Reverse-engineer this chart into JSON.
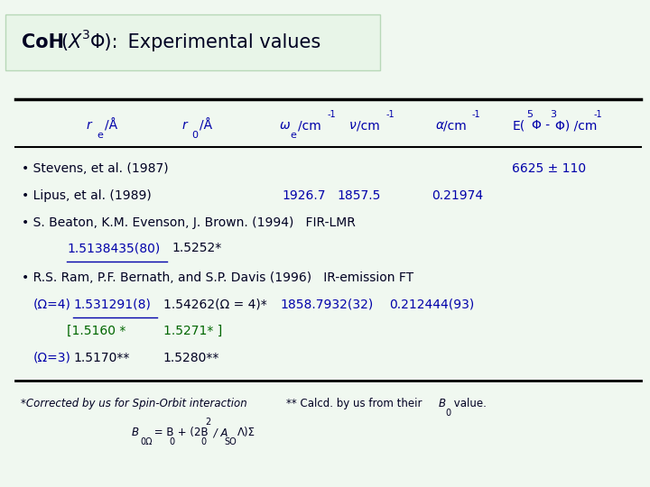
{
  "title_prefix": "CoH ",
  "title_paren": "(",
  "title_X": "X",
  "title_super": "3",
  "title_Phi": "Φ): ",
  "title_suffix": " Experimental values",
  "title_bg": "#e8f5e8",
  "bg_color": "#f0f8f0",
  "blue": "#0000aa",
  "dark": "#000022",
  "green": "#006600",
  "stevens_label": "• Stevens, et al. (1987)",
  "stevens_val": "6625 ± 110",
  "lipus_label": "• Lipus, et al. (1989)",
  "lipus_we": "1926.7",
  "lipus_nu": "1857.5",
  "lipus_alpha": "0.21974",
  "beaton_label": "• S. Beaton, K.M. Evenson, J. Brown. (1994)   FIR-LMR",
  "beaton_re": "1.5138435(80)",
  "beaton_r0": "1.5252*",
  "ram_label": "• R.S. Ram, P.F. Bernath, and S.P. Davis (1996)   IR-emission FT",
  "ram_omega4": "(Ω=4)",
  "ram_re4": "1.531291(8)",
  "ram_r04": "1.54262(Ω = 4)*",
  "ram_we": "1858.7932(32)",
  "ram_alpha": "0.212444(93)",
  "ram_re4_corr": "[1.5160 *",
  "ram_r04_corr": "1.5271* ]",
  "ram_omega3": "(Ω=3)",
  "ram_re3": "1.5170**",
  "ram_r03": "1.5280**",
  "footnote1": "*Corrected by us for Spin-Orbit interaction",
  "footnote2a": "** Calcd. by us from their ",
  "footnote2b": "B",
  "footnote2c": "0",
  "footnote2d": " value."
}
